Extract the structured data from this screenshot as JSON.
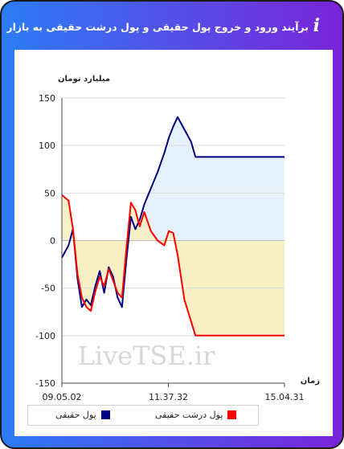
{
  "header": {
    "title": "برآیند ورود و خروج پول حقیقی و پول درشت حقیقی به بازار",
    "info_icon": "info-icon"
  },
  "watermark": "LiveTSE.ir",
  "chart_data": {
    "type": "line",
    "ylabel": "میلیارد تومان",
    "xlabel": "زمان",
    "ylim": [
      -150,
      150
    ],
    "yticks": [
      150,
      100,
      50,
      0,
      -50,
      -100,
      -150
    ],
    "x_tick_labels": [
      "09.05.02",
      "11.37.32",
      "15.04.31"
    ],
    "grid": "horizontal",
    "legend_placement": "bottom",
    "x": [
      0,
      3,
      5,
      7,
      9,
      11,
      13,
      15,
      17,
      19,
      21,
      23,
      25,
      27,
      29,
      31,
      33,
      35,
      37,
      40,
      43,
      46,
      48,
      50,
      52,
      55,
      58,
      60,
      62,
      64,
      66,
      68,
      70,
      72,
      74,
      76,
      78,
      80,
      82,
      84,
      86,
      88,
      90,
      92,
      95,
      100
    ],
    "series": [
      {
        "name": "پول حقیقی",
        "color": "#000080",
        "values": [
          -18,
          -5,
          12,
          -40,
          -70,
          -62,
          -68,
          -48,
          -32,
          -55,
          -28,
          -38,
          -60,
          -70,
          -20,
          25,
          12,
          22,
          38,
          55,
          72,
          92,
          108,
          120,
          130,
          117,
          104,
          88,
          88,
          88,
          88,
          88,
          88,
          88,
          88,
          88,
          88,
          88,
          88,
          88,
          88,
          88,
          88,
          88,
          88,
          88
        ]
      },
      {
        "name": "پول درشت حقیقی",
        "color": "#ff0000",
        "values": [
          48,
          42,
          12,
          -35,
          -60,
          -70,
          -74,
          -54,
          -38,
          -48,
          -30,
          -42,
          -55,
          -60,
          -8,
          40,
          32,
          15,
          30,
          10,
          0,
          -5,
          10,
          8,
          -15,
          -62,
          -85,
          -100,
          -100,
          -100,
          -100,
          -100,
          -100,
          -100,
          -100,
          -100,
          -100,
          -100,
          -100,
          -100,
          -100,
          -100,
          -100,
          -100,
          -100,
          -100
        ]
      }
    ]
  },
  "colors": {
    "positive_fill": "#e6f2fb",
    "negative_fill": "#f6f0c4",
    "header_gradient_start": "#2b7cf6",
    "header_gradient_end": "#7a24d8"
  }
}
